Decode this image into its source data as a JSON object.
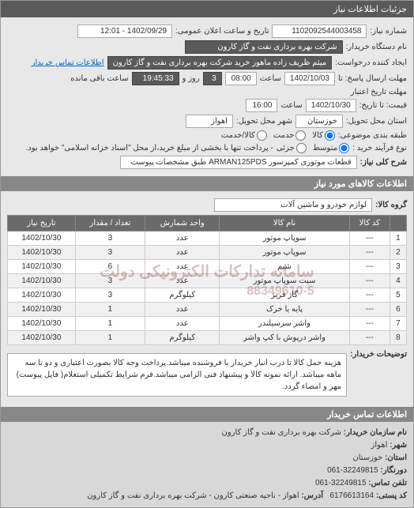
{
  "titlebar": "جزئیات اطلاعات نیاز",
  "header": {
    "reqnum_label": "شماره نیاز:",
    "reqnum": "1102092544003458",
    "pubdate_label": "تاریخ و ساعت اعلان عمومی:",
    "pubdate": "1402/09/29 - 12:01",
    "buyer_label": "نام دستگاه خریدار:",
    "buyer": "شرکت بهره برداری نفت و گاز کارون",
    "creator_label": "ایجاد کننده درخواست:",
    "creator": "میثم ظریف زاده ماهور خرید شرکت بهره برداری نفت و گاز کارون",
    "contact_link": "اطلاعات تماس خریدار"
  },
  "deadline": {
    "send_label": "مهلت ارسال پاسخ: تا",
    "send_date": "1402/10/03",
    "time_label": "ساعت",
    "send_time": "08:00",
    "remain_days": "3",
    "remain_days_label": "روز و",
    "remain_time": "19:45:33",
    "remain_time_label": "ساعت باقی مانده",
    "validity_label": "مهلت تاریخ اعتبار",
    "validity_to_label": "قیمت: تا تاریخ:",
    "validity_date": "1402/10/30",
    "validity_time": "16:00"
  },
  "delivery": {
    "province_label": "استان محل تحویل:",
    "province": "خوزستان",
    "city_label": "شهر محل تحویل:",
    "city": "اهواز"
  },
  "packaging": {
    "label": "طبقه بندی موضوعی:",
    "opt_commodity": "کالا",
    "opt_service": "خدمت",
    "opt_both": "کالا/خدمت"
  },
  "payment": {
    "label": "نوع فرآیند خرید :",
    "opt_medium": "متوسط",
    "opt_small": "جزئی",
    "note": "- پرداخت تنها با بخشی از مبلغ خرید،از محل \"اسناد خزانه اسلامی\" خواهد بود."
  },
  "need": {
    "label": "شرح کلی نیاز:",
    "text": "قطعات موتوری کمپرسور ARMAN125PDS طبق مشخصات پیوست"
  },
  "goods_section": "اطلاعات کالاهای مورد نیاز",
  "group": {
    "label": "گروه کالا:",
    "text": "لوازم خودرو و ماشین آلات"
  },
  "table": {
    "cols": [
      "",
      "کد کالا",
      "نام کالا",
      "واحد شمارش",
      "تعداد / مقدار",
      "تاریخ نیاز"
    ],
    "rows": [
      [
        "1",
        "---",
        "سوپاپ موتور",
        "عدد",
        "3",
        "1402/10/30"
      ],
      [
        "2",
        "---",
        "سوپاپ موتور",
        "عدد",
        "3",
        "1402/10/30"
      ],
      [
        "3",
        "---",
        "شیم",
        "عدد",
        "6",
        "1402/10/30"
      ],
      [
        "4",
        "---",
        "سیت سوپاپ موتور",
        "عدد",
        "3",
        "1402/10/30"
      ],
      [
        "5",
        "---",
        "گاز فریز",
        "کیلوگرم",
        "3",
        "1402/10/30"
      ],
      [
        "6",
        "---",
        "پایه یا خرک",
        "عدد",
        "1",
        "1402/10/30"
      ],
      [
        "7",
        "---",
        "واشر سرسیلندر",
        "عدد",
        "1",
        "1402/10/30"
      ],
      [
        "8",
        "---",
        "واشر درپوش با کپ واشر",
        "کیلوگرم",
        "1",
        "1402/10/30"
      ]
    ],
    "watermark": "سامانه تدارکات الکترونیکی دولت",
    "phone": "88349610-5"
  },
  "desc": {
    "label": "توضیحات خریدار:",
    "text": "هزینه حمل کالا تا درب انبار خریدار با فروشنده میباشد.پرداخت وجه کالا بصورت اعتباری و دو تا سه ماهه میباشد. ارائه نمونه کالا و پیشنهاد فنی الزامی میباشد.فرم شرایط تکمیلی استعلام( فایل پیوست) مهر و امضاء گردد."
  },
  "footer": {
    "contact_section": "اطلاعات تماس خریدار",
    "org_label": "نام سازمان خریدار:",
    "org": "شرکت بهره برداری نفت و گاز کارون",
    "city_label": "شهر:",
    "city": "اهواز",
    "province_label": "استان:",
    "province": "خوزستان",
    "phone_label": "دورنگار:",
    "phone": "32249815-061",
    "fax_label": "تلفن تماس:",
    "fax": "32249815-061",
    "postal_label": "کد پستی:",
    "postal": "6176613164",
    "addr_label": "آدرس:",
    "addr": "اهواز - ناحیه صنعتی کارون - شرکت بهره برداری نفت و گاز کارون"
  }
}
